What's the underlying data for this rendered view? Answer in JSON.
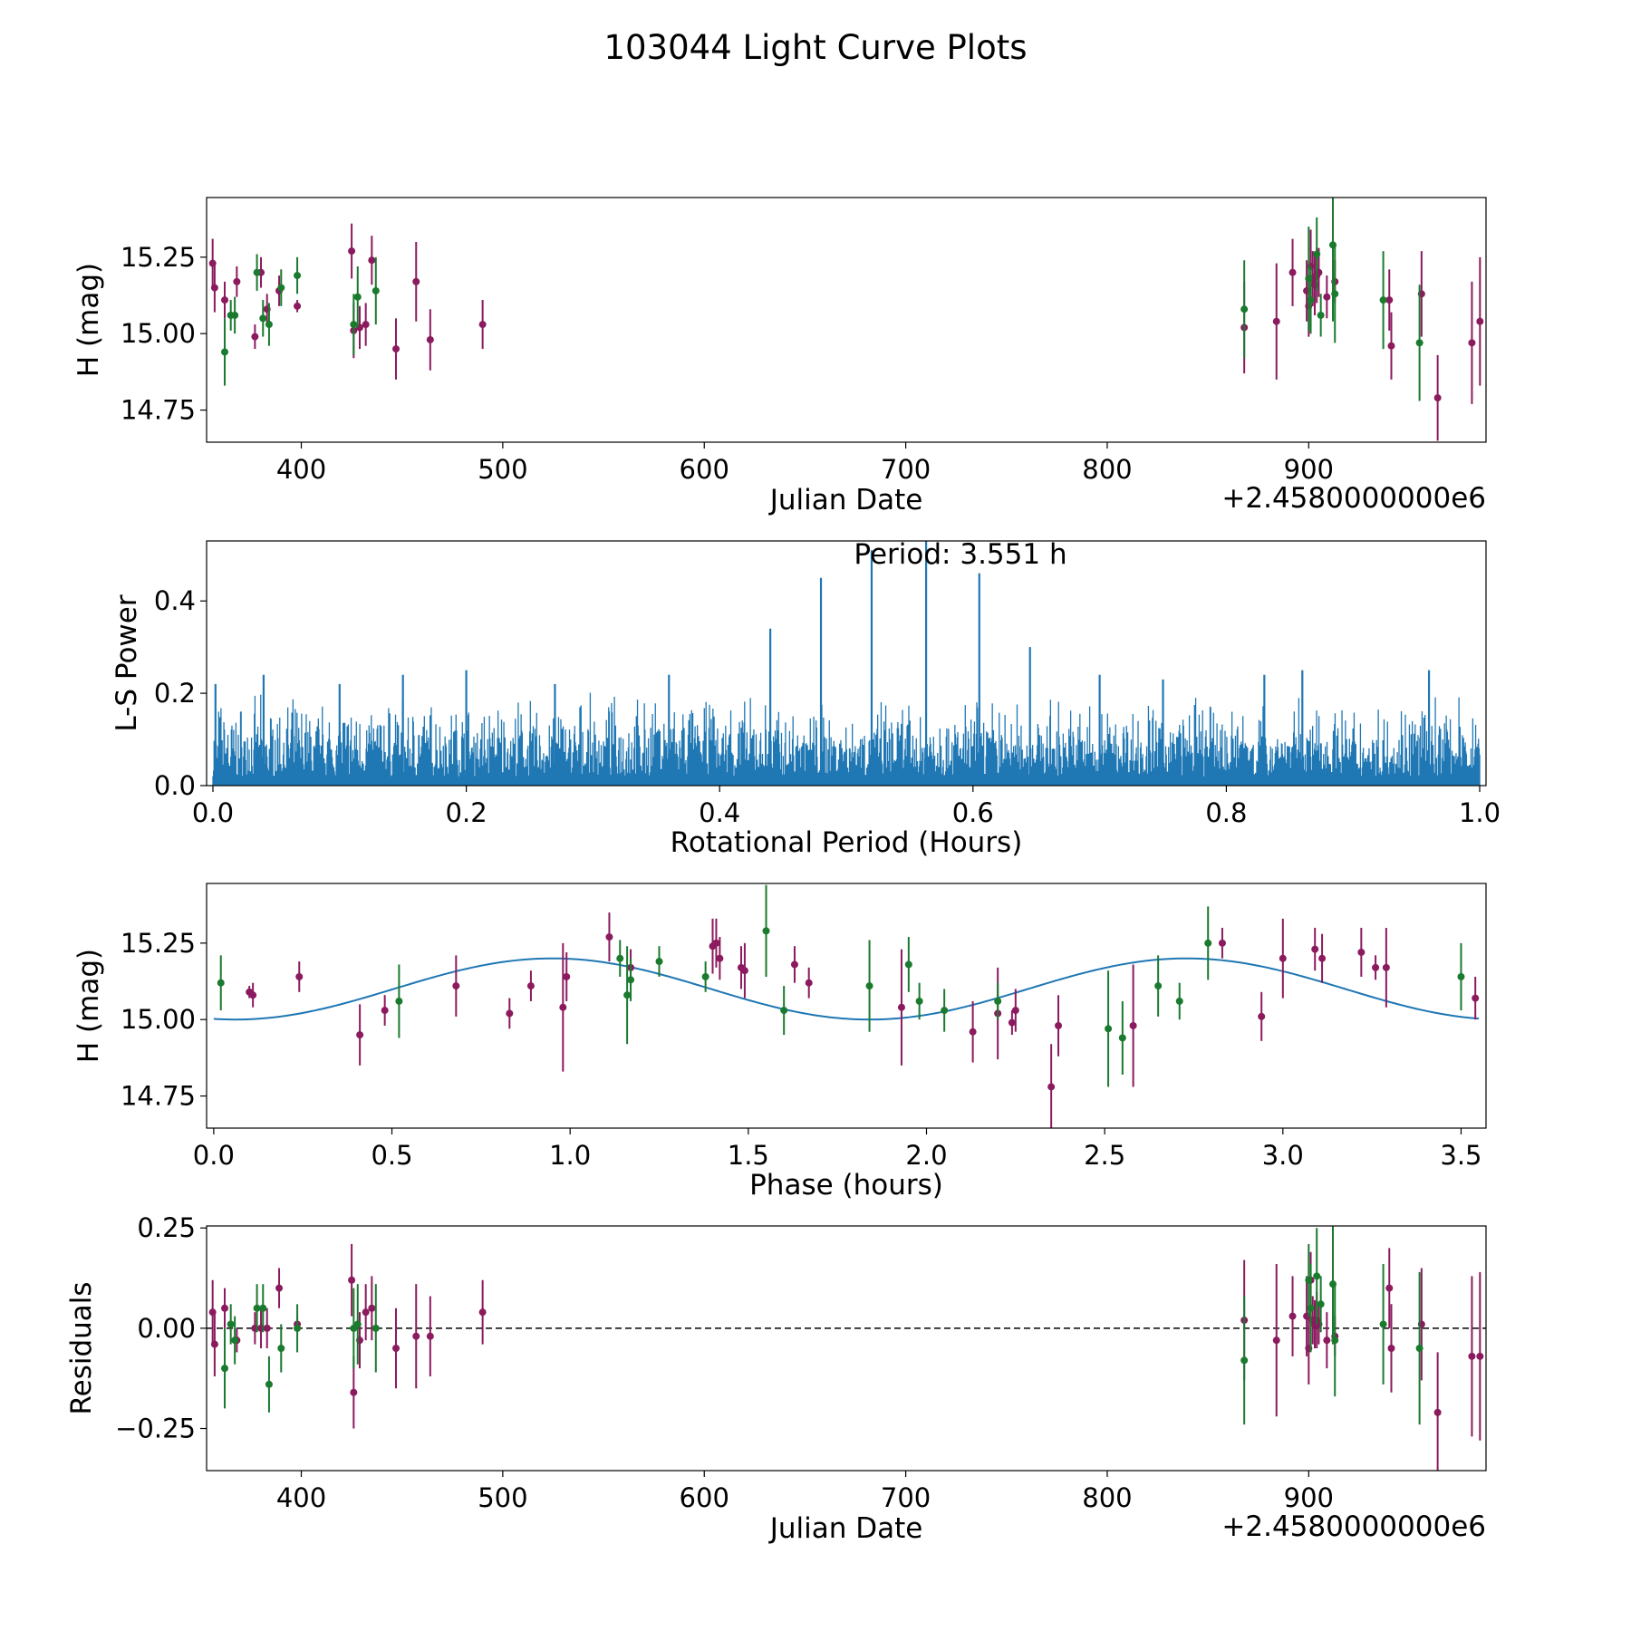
{
  "figure": {
    "title": "103044 Light Curve Plots"
  },
  "colors": {
    "purple": "#8b1a5e",
    "green": "#1a7a2e",
    "blue": "#1f77b4"
  },
  "chart_data": [
    {
      "id": "lightcurve",
      "type": "scatter",
      "xlabel": "Julian Date",
      "ylabel": "H (mag)",
      "offset_label": "+2.4580000000e6",
      "xlim": [
        353,
        988
      ],
      "ylim": [
        14.645,
        15.445
      ],
      "xticks": [
        400,
        500,
        600,
        700,
        800,
        900
      ],
      "xticklabels": [
        "400",
        "500",
        "600",
        "700",
        "800",
        "900"
      ],
      "yticks": [
        14.75,
        15.0,
        15.25
      ],
      "yticklabels": [
        "14.75",
        "15.00",
        "15.25"
      ],
      "series": [
        {
          "name": "purple",
          "color": "#8b1a5e",
          "x": [
            356,
            357,
            362,
            368,
            377,
            380,
            383,
            389,
            398,
            425,
            426,
            429,
            432,
            435,
            447,
            457,
            464,
            490,
            868,
            884,
            892,
            899,
            900,
            901,
            902,
            903,
            904,
            905,
            909,
            913,
            940,
            941,
            956,
            964,
            981,
            985
          ],
          "y": [
            15.23,
            15.15,
            15.11,
            15.17,
            14.99,
            15.2,
            15.08,
            15.14,
            15.09,
            15.27,
            15.01,
            15.02,
            15.03,
            15.24,
            14.95,
            15.17,
            14.98,
            15.03,
            15.02,
            15.04,
            15.2,
            15.14,
            15.09,
            15.22,
            15.18,
            15.16,
            15.19,
            15.2,
            15.12,
            15.17,
            15.11,
            14.96,
            15.13,
            14.79,
            14.97,
            15.04
          ],
          "err": [
            0.08,
            0.08,
            0.06,
            0.05,
            0.04,
            0.05,
            0.05,
            0.05,
            0.02,
            0.09,
            0.09,
            0.07,
            0.07,
            0.08,
            0.1,
            0.13,
            0.1,
            0.08,
            0.15,
            0.19,
            0.11,
            0.1,
            0.1,
            0.12,
            0.09,
            0.1,
            0.09,
            0.08,
            0.07,
            0.07,
            0.1,
            0.11,
            0.14,
            0.14,
            0.2,
            0.21
          ]
        },
        {
          "name": "green",
          "color": "#1a7a2e",
          "x": [
            362,
            365,
            367,
            378,
            381,
            384,
            390,
            398,
            426,
            428,
            437,
            868,
            900,
            901,
            904,
            906,
            912,
            913,
            937,
            955
          ],
          "y": [
            14.94,
            15.06,
            15.06,
            15.2,
            15.05,
            15.03,
            15.15,
            15.19,
            15.03,
            15.12,
            15.14,
            15.08,
            15.18,
            15.11,
            15.26,
            15.06,
            15.29,
            15.13,
            15.11,
            14.97
          ],
          "err": [
            0.11,
            0.05,
            0.06,
            0.06,
            0.06,
            0.07,
            0.06,
            0.06,
            0.1,
            0.1,
            0.11,
            0.16,
            0.17,
            0.11,
            0.12,
            0.07,
            0.25,
            0.16,
            0.16,
            0.19
          ]
        }
      ]
    },
    {
      "id": "periodogram",
      "type": "line",
      "xlabel": "Rotational Period (Hours)",
      "ylabel": "L-S Power",
      "annotation": "Period: 3.551 h",
      "xlim": [
        -0.005,
        1.005
      ],
      "ylim": [
        0,
        0.53
      ],
      "xticks": [
        0.0,
        0.2,
        0.4,
        0.6,
        0.8,
        1.0
      ],
      "xticklabels": [
        "0.0",
        "0.2",
        "0.4",
        "0.6",
        "0.8",
        "1.0"
      ],
      "yticks": [
        0.0,
        0.2,
        0.4
      ],
      "yticklabels": [
        "0.0",
        "0.2",
        "0.4"
      ],
      "noise_level": 0.13,
      "noise_min": 0.02,
      "range": [
        0.0,
        1.0
      ],
      "peaks": [
        {
          "x": 0.002,
          "y": 0.22
        },
        {
          "x": 0.04,
          "y": 0.24
        },
        {
          "x": 0.1,
          "y": 0.22
        },
        {
          "x": 0.15,
          "y": 0.24
        },
        {
          "x": 0.2,
          "y": 0.25
        },
        {
          "x": 0.27,
          "y": 0.22
        },
        {
          "x": 0.36,
          "y": 0.24
        },
        {
          "x": 0.44,
          "y": 0.34
        },
        {
          "x": 0.48,
          "y": 0.45
        },
        {
          "x": 0.52,
          "y": 0.51
        },
        {
          "x": 0.563,
          "y": 0.53
        },
        {
          "x": 0.605,
          "y": 0.46
        },
        {
          "x": 0.645,
          "y": 0.3
        },
        {
          "x": 0.7,
          "y": 0.24
        },
        {
          "x": 0.75,
          "y": 0.23
        },
        {
          "x": 0.83,
          "y": 0.24
        },
        {
          "x": 0.86,
          "y": 0.25
        },
        {
          "x": 0.96,
          "y": 0.25
        }
      ]
    },
    {
      "id": "phased",
      "type": "scatter",
      "xlabel": "Phase (hours)",
      "ylabel": "H (mag)",
      "xlim": [
        -0.02,
        3.57
      ],
      "ylim": [
        14.645,
        15.445
      ],
      "xticks": [
        0.0,
        0.5,
        1.0,
        1.5,
        2.0,
        2.5,
        3.0,
        3.5
      ],
      "xticklabels": [
        "0.0",
        "0.5",
        "1.0",
        "1.5",
        "2.0",
        "2.5",
        "3.0",
        "3.5"
      ],
      "yticks": [
        14.75,
        15.0,
        15.25
      ],
      "yticklabels": [
        "14.75",
        "15.00",
        "15.25"
      ],
      "fit": {
        "mean": 15.1,
        "amplitude": 0.1,
        "period": 1.78,
        "phase0": 0.95,
        "xmin": 0.0,
        "xmax": 3.55
      },
      "series": [
        {
          "name": "purple",
          "color": "#8b1a5e",
          "x": [
            0.1,
            0.11,
            0.24,
            0.41,
            0.48,
            0.68,
            0.83,
            0.89,
            0.98,
            0.99,
            1.11,
            1.17,
            1.4,
            1.41,
            1.42,
            1.48,
            1.49,
            1.63,
            1.67,
            1.93,
            2.13,
            2.2,
            2.24,
            2.25,
            2.35,
            2.37,
            2.58,
            2.83,
            2.94,
            3.0,
            3.09,
            3.11,
            3.22,
            3.26,
            3.29,
            3.54
          ],
          "y": [
            15.09,
            15.08,
            15.14,
            14.95,
            15.03,
            15.11,
            15.02,
            15.11,
            15.04,
            15.14,
            15.27,
            15.17,
            15.24,
            15.25,
            15.2,
            15.17,
            15.16,
            15.18,
            15.12,
            15.04,
            14.96,
            15.02,
            14.99,
            15.03,
            14.78,
            14.98,
            14.98,
            15.25,
            15.01,
            15.2,
            15.23,
            15.2,
            15.22,
            15.17,
            15.17,
            15.07
          ],
          "err": [
            0.02,
            0.04,
            0.05,
            0.1,
            0.05,
            0.1,
            0.05,
            0.05,
            0.21,
            0.08,
            0.08,
            0.06,
            0.09,
            0.08,
            0.07,
            0.07,
            0.09,
            0.06,
            0.05,
            0.19,
            0.1,
            0.15,
            0.04,
            0.07,
            0.14,
            0.1,
            0.2,
            0.05,
            0.08,
            0.13,
            0.07,
            0.08,
            0.08,
            0.04,
            0.13,
            0.07
          ]
        },
        {
          "name": "green",
          "color": "#1a7a2e",
          "x": [
            0.02,
            0.52,
            1.14,
            1.16,
            1.17,
            1.25,
            1.38,
            1.55,
            1.6,
            1.84,
            1.95,
            1.98,
            2.05,
            2.2,
            2.51,
            2.55,
            2.65,
            2.71,
            2.79,
            3.5
          ],
          "y": [
            15.12,
            15.06,
            15.2,
            15.08,
            15.13,
            15.19,
            15.14,
            15.29,
            15.03,
            15.11,
            15.18,
            15.06,
            15.03,
            15.06,
            14.97,
            14.94,
            15.11,
            15.06,
            15.25,
            15.14
          ],
          "err": [
            0.09,
            0.12,
            0.06,
            0.16,
            0.07,
            0.05,
            0.05,
            0.15,
            0.08,
            0.15,
            0.09,
            0.06,
            0.07,
            0.06,
            0.19,
            0.12,
            0.1,
            0.06,
            0.12,
            0.11
          ]
        }
      ]
    },
    {
      "id": "residuals",
      "type": "scatter",
      "xlabel": "Julian Date",
      "ylabel": "Residuals",
      "offset_label": "+2.4580000000e6",
      "xlim": [
        353,
        988
      ],
      "ylim": [
        -0.355,
        0.255
      ],
      "xticks": [
        400,
        500,
        600,
        700,
        800,
        900
      ],
      "xticklabels": [
        "400",
        "500",
        "600",
        "700",
        "800",
        "900"
      ],
      "yticks": [
        -0.25,
        0.0,
        0.25
      ],
      "yticklabels": [
        "−0.25",
        "0.00",
        "0.25"
      ],
      "zero_line": 0,
      "series": [
        {
          "name": "purple",
          "color": "#8b1a5e",
          "x": [
            356,
            357,
            362,
            368,
            377,
            380,
            383,
            389,
            398,
            425,
            426,
            429,
            432,
            435,
            447,
            457,
            464,
            490,
            868,
            884,
            892,
            899,
            900,
            901,
            902,
            903,
            904,
            905,
            909,
            913,
            940,
            941,
            956,
            964,
            981,
            985
          ],
          "y": [
            0.04,
            -0.04,
            0.05,
            -0.03,
            0.0,
            0.0,
            0.0,
            0.1,
            0.01,
            0.12,
            -0.16,
            -0.03,
            0.04,
            0.05,
            -0.05,
            -0.02,
            -0.02,
            0.04,
            0.02,
            -0.03,
            0.03,
            0.03,
            -0.05,
            0.12,
            0.02,
            0.01,
            0.02,
            0.01,
            -0.03,
            -0.02,
            0.1,
            -0.05,
            0.01,
            -0.21,
            -0.07,
            -0.07
          ],
          "err": [
            0.08,
            0.08,
            0.05,
            0.03,
            0.04,
            0.05,
            0.05,
            0.05,
            0.02,
            0.09,
            0.09,
            0.07,
            0.07,
            0.08,
            0.1,
            0.13,
            0.1,
            0.08,
            0.15,
            0.19,
            0.1,
            0.1,
            0.09,
            0.07,
            0.06,
            0.06,
            0.07,
            0.05,
            0.07,
            0.05,
            0.1,
            0.11,
            0.14,
            0.15,
            0.2,
            0.21
          ]
        },
        {
          "name": "green",
          "color": "#1a7a2e",
          "x": [
            362,
            365,
            367,
            378,
            381,
            384,
            390,
            398,
            426,
            428,
            437,
            868,
            900,
            901,
            904,
            906,
            912,
            913,
            937,
            955
          ],
          "y": [
            -0.1,
            0.01,
            -0.03,
            0.05,
            0.05,
            -0.14,
            -0.05,
            0.0,
            0.0,
            0.01,
            0.0,
            -0.08,
            0.12,
            0.05,
            0.13,
            0.06,
            0.11,
            -0.03,
            0.01,
            -0.05
          ],
          "err": [
            0.1,
            0.05,
            0.06,
            0.06,
            0.06,
            0.07,
            0.06,
            0.06,
            0.1,
            0.1,
            0.11,
            0.16,
            0.09,
            0.11,
            0.12,
            0.07,
            0.15,
            0.14,
            0.15,
            0.19
          ]
        }
      ]
    }
  ]
}
